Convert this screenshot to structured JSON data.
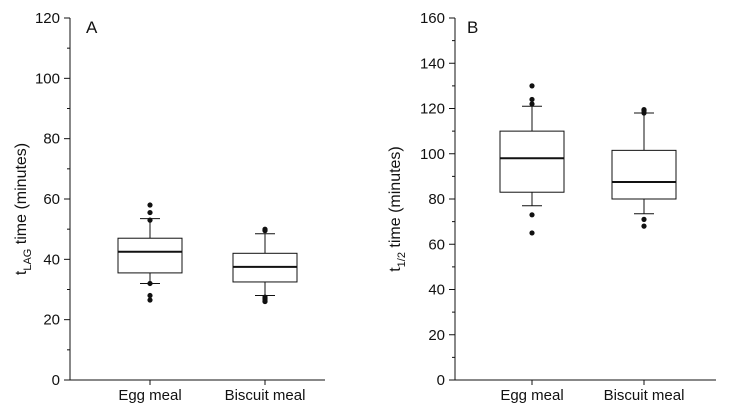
{
  "chart_data": [
    {
      "type": "boxplot",
      "panel_label": "A",
      "ylabel": {
        "base": "t",
        "sub": "LAG",
        "rest": " time (minutes)"
      },
      "ylim": [
        0,
        120
      ],
      "yticks": [
        0,
        20,
        40,
        60,
        80,
        100,
        120
      ],
      "categories": [
        "Egg meal",
        "Biscuit meal"
      ],
      "boxes": [
        {
          "category": "Egg meal",
          "whisker_low": 32,
          "q1": 35.5,
          "median": 42.5,
          "q3": 47,
          "whisker_high": 53.5,
          "outliers": [
            26.5,
            28,
            32,
            53,
            55.5,
            58
          ]
        },
        {
          "category": "Biscuit meal",
          "whisker_low": 28,
          "q1": 32.5,
          "median": 37.5,
          "q3": 42,
          "whisker_high": 48.5,
          "outliers": [
            26,
            26.5,
            27,
            27.5,
            49.5,
            50
          ]
        }
      ]
    },
    {
      "type": "boxplot",
      "panel_label": "B",
      "ylabel": {
        "base": "t",
        "sub": "1/2",
        "rest": " time (minutes)"
      },
      "ylim": [
        0,
        160
      ],
      "yticks": [
        0,
        20,
        40,
        60,
        80,
        100,
        120,
        140,
        160
      ],
      "categories": [
        "Egg meal",
        "Biscuit meal"
      ],
      "boxes": [
        {
          "category": "Egg meal",
          "whisker_low": 77,
          "q1": 83,
          "median": 98,
          "q3": 110,
          "whisker_high": 121,
          "outliers": [
            65,
            73,
            122,
            124,
            130
          ]
        },
        {
          "category": "Biscuit meal",
          "whisker_low": 73.5,
          "q1": 80,
          "median": 87.5,
          "q3": 101.5,
          "whisker_high": 118,
          "outliers": [
            68,
            71,
            118,
            119,
            119.5
          ]
        }
      ]
    }
  ]
}
